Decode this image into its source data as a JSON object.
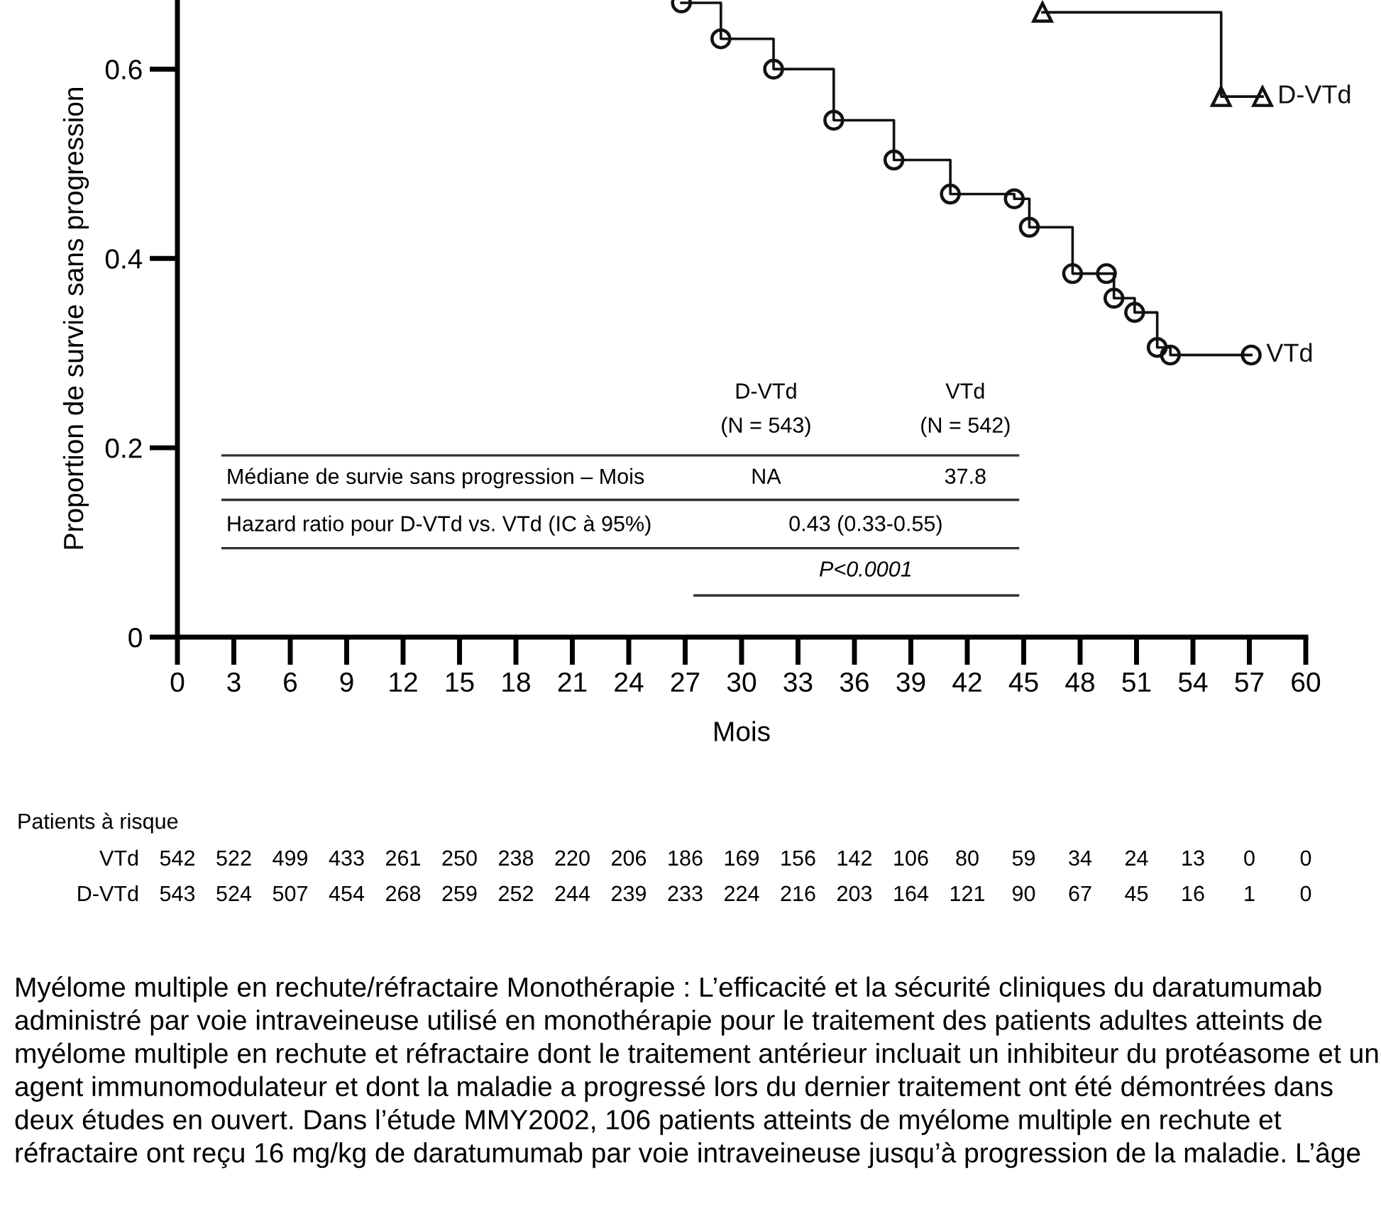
{
  "chart_data": {
    "type": "step",
    "xlabel": "Mois",
    "ylabel": "Proportion de survie sans progression",
    "xlim": [
      0,
      60
    ],
    "ylim": [
      0,
      0.673
    ],
    "xticks": [
      0,
      3,
      6,
      9,
      12,
      15,
      18,
      21,
      24,
      27,
      30,
      33,
      36,
      39,
      42,
      45,
      48,
      51,
      54,
      57,
      60
    ],
    "yticks": [
      0,
      0.2,
      0.4,
      0.6
    ],
    "legend": false,
    "series": [
      {
        "name": "VTd",
        "color": "#111111",
        "marker": "circle",
        "x": [
          26.8,
          28.9,
          31.7,
          34.9,
          38.1,
          41.1,
          44.5,
          45.3,
          47.6,
          49.4,
          49.8,
          50.9,
          52.1,
          52.8,
          57.1
        ],
        "values": [
          0.67,
          0.632,
          0.6,
          0.546,
          0.504,
          0.468,
          0.463,
          0.433,
          0.384,
          0.384,
          0.358,
          0.343,
          0.306,
          0.298,
          0.298
        ]
      },
      {
        "name": "D-VTd",
        "color": "#111111",
        "marker": "triangle",
        "x": [
          46,
          55.5,
          57.7
        ],
        "values": [
          0.66,
          0.571,
          0.571
        ]
      }
    ],
    "annotations": [
      "Patients à risque",
      "VTd",
      "542",
      "522",
      "499",
      "433",
      "261",
      "250",
      "238",
      "220",
      "206",
      "186",
      "169",
      "156",
      "142",
      "106",
      "80",
      "59",
      "34",
      "24",
      "13",
      "0",
      "0",
      "D-VTd",
      "543",
      "524",
      "507",
      "454",
      "268",
      "259",
      "252",
      "244",
      "239",
      "233",
      "224",
      "216",
      "203",
      "164",
      "121",
      "90",
      "67",
      "45",
      "16",
      "1",
      "0",
      "D-VTd",
      "(N = 543)",
      "VTd",
      "(N = 542)",
      "Médiane de survie sans progression – Mois",
      "NA",
      "37.8",
      "Hazard ratio pour D-VTd vs. VTd (IC à 95%)",
      "0.43 (0.33-0.55)",
      "P<0.0001",
      "Myélome multiple en rechute/réfractaire Monothérapie : L’efficacité et la sécurité cliniques du daratumumab administré par voie intraveineuse utilisé en monothérapie pour le traitement des patients adultes atteints de myélome multiple en rechute et réfractaire dont le traitement antérieur incluait un inhibiteur du protéasome et un agent immunomodulateur et dont la maladie a progressé lors du dernier traitement ont été démontrées dans deux études en ouvert. Dans l’étude MMY2002, 106 patients atteints de myélome multiple en rechute et réfractaire ont reçu 16 mg/kg de daratumumab par voie intraveineuse jusqu’à progression de la maladie. L’âge"
    ]
  }
}
